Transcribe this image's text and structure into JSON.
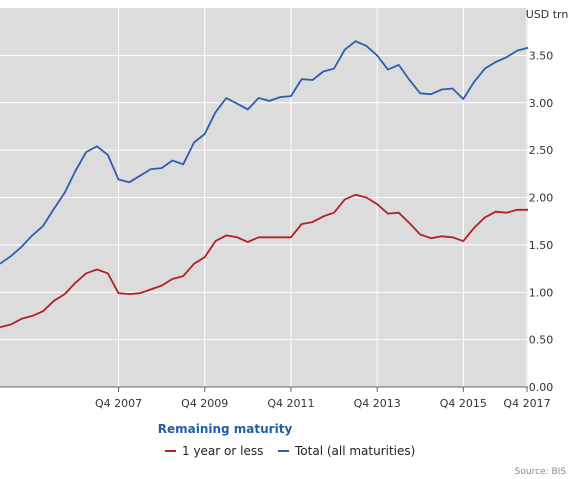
{
  "chart_data": {
    "type": "line",
    "y_unit": "USD trn",
    "ylim": [
      0,
      4
    ],
    "y_ticks": [
      "0.00",
      "0.50",
      "1.00",
      "1.50",
      "2.00",
      "2.50",
      "3.00",
      "3.50"
    ],
    "y_tick_values": [
      0,
      0.5,
      1,
      1.5,
      2,
      2.5,
      3,
      3.5
    ],
    "xlim": [
      2005.0,
      2017.25
    ],
    "x_ticks": [
      "Q4 2007",
      "Q4 2009",
      "Q4 2011",
      "Q4 2013",
      "Q4 2015",
      "Q4 2017"
    ],
    "x_tick_values": [
      2007.75,
      2009.75,
      2011.75,
      2013.75,
      2015.75,
      2017.75
    ],
    "grid": true,
    "legend_title": "Remaining maturity",
    "legend_position": "bottom",
    "source": "Source: BIS",
    "series": [
      {
        "name": "1 year or less",
        "color": "#b22222",
        "x": [
          2005.0,
          2005.25,
          2005.5,
          2005.75,
          2006.0,
          2006.25,
          2006.5,
          2006.75,
          2007.0,
          2007.25,
          2007.5,
          2007.75,
          2008.0,
          2008.25,
          2008.5,
          2008.75,
          2009.0,
          2009.25,
          2009.5,
          2009.75,
          2010.0,
          2010.25,
          2010.5,
          2010.75,
          2011.0,
          2011.25,
          2011.5,
          2011.75,
          2012.0,
          2012.25,
          2012.5,
          2012.75,
          2013.0,
          2013.25,
          2013.5,
          2013.75,
          2014.0,
          2014.25,
          2014.5,
          2014.75,
          2015.0,
          2015.25,
          2015.5,
          2015.75,
          2016.0,
          2016.25,
          2016.5,
          2016.75,
          2017.0,
          2017.25
        ],
        "values": [
          0.63,
          0.66,
          0.72,
          0.75,
          0.8,
          0.91,
          0.98,
          1.1,
          1.2,
          1.24,
          1.2,
          0.99,
          0.98,
          0.99,
          1.03,
          1.07,
          1.14,
          1.17,
          1.3,
          1.37,
          1.54,
          1.6,
          1.58,
          1.53,
          1.58,
          1.58,
          1.58,
          1.58,
          1.72,
          1.74,
          1.8,
          1.84,
          1.98,
          2.03,
          2.0,
          1.93,
          1.83,
          1.84,
          1.73,
          1.61,
          1.57,
          1.59,
          1.58,
          1.54,
          1.68,
          1.79,
          1.85,
          1.84,
          1.87,
          1.87
        ]
      },
      {
        "name": "Total (all maturities)",
        "color": "#2e5fac",
        "x": [
          2005.0,
          2005.25,
          2005.5,
          2005.75,
          2006.0,
          2006.25,
          2006.5,
          2006.75,
          2007.0,
          2007.25,
          2007.5,
          2007.75,
          2008.0,
          2008.25,
          2008.5,
          2008.75,
          2009.0,
          2009.25,
          2009.5,
          2009.75,
          2010.0,
          2010.25,
          2010.5,
          2010.75,
          2011.0,
          2011.25,
          2011.5,
          2011.75,
          2012.0,
          2012.25,
          2012.5,
          2012.75,
          2013.0,
          2013.25,
          2013.5,
          2013.75,
          2014.0,
          2014.25,
          2014.5,
          2014.75,
          2015.0,
          2015.25,
          2015.5,
          2015.75,
          2016.0,
          2016.25,
          2016.5,
          2016.75,
          2017.0,
          2017.25
        ],
        "values": [
          1.3,
          1.38,
          1.48,
          1.6,
          1.7,
          1.88,
          2.05,
          2.28,
          2.48,
          2.54,
          2.45,
          2.19,
          2.16,
          2.23,
          2.3,
          2.31,
          2.39,
          2.35,
          2.58,
          2.67,
          2.9,
          3.05,
          2.99,
          2.93,
          3.05,
          3.02,
          3.06,
          3.07,
          3.25,
          3.24,
          3.33,
          3.36,
          3.56,
          3.65,
          3.6,
          3.5,
          3.35,
          3.4,
          3.24,
          3.1,
          3.09,
          3.14,
          3.15,
          3.04,
          3.22,
          3.36,
          3.43,
          3.48,
          3.55,
          3.58
        ]
      }
    ]
  }
}
